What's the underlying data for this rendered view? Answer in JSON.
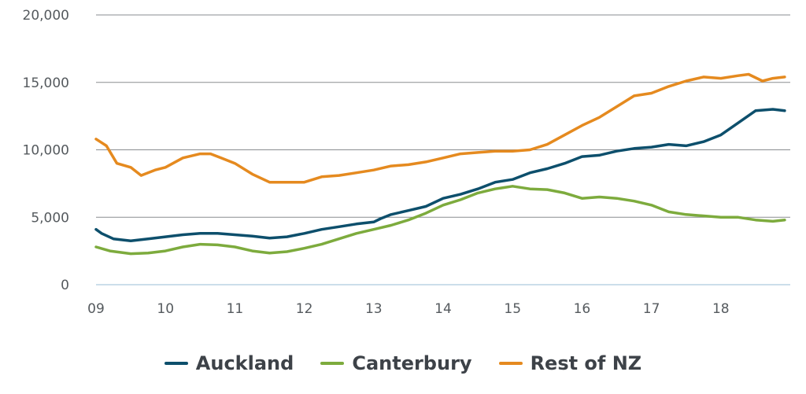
{
  "chart_data": {
    "type": "line",
    "title": "",
    "xlabel": "",
    "ylabel": "",
    "xlim": [
      2009,
      2019
    ],
    "ylim": [
      0,
      20000
    ],
    "y_ticks": [
      0,
      5000,
      10000,
      15000,
      20000
    ],
    "y_tick_labels": [
      "0",
      "5,000",
      "10,000",
      "15,000",
      "20,000"
    ],
    "x_ticks": [
      2009,
      2010,
      2011,
      2012,
      2013,
      2014,
      2015,
      2016,
      2017,
      2018
    ],
    "x_tick_labels": [
      "09",
      "10",
      "11",
      "12",
      "13",
      "14",
      "15",
      "16",
      "17",
      "18"
    ],
    "grid": true,
    "legend_position": "bottom",
    "series": [
      {
        "name": "Auckland",
        "color": "#0d4f6c",
        "points": [
          [
            2009.0,
            4100
          ],
          [
            2009.08,
            3800
          ],
          [
            2009.25,
            3400
          ],
          [
            2009.5,
            3250
          ],
          [
            2009.75,
            3400
          ],
          [
            2010.0,
            3550
          ],
          [
            2010.25,
            3700
          ],
          [
            2010.5,
            3800
          ],
          [
            2010.75,
            3800
          ],
          [
            2011.0,
            3700
          ],
          [
            2011.25,
            3600
          ],
          [
            2011.5,
            3450
          ],
          [
            2011.75,
            3550
          ],
          [
            2012.0,
            3800
          ],
          [
            2012.25,
            4100
          ],
          [
            2012.5,
            4300
          ],
          [
            2012.75,
            4500
          ],
          [
            2013.0,
            4650
          ],
          [
            2013.1,
            4900
          ],
          [
            2013.25,
            5200
          ],
          [
            2013.5,
            5500
          ],
          [
            2013.75,
            5800
          ],
          [
            2014.0,
            6400
          ],
          [
            2014.25,
            6700
          ],
          [
            2014.5,
            7100
          ],
          [
            2014.75,
            7600
          ],
          [
            2015.0,
            7800
          ],
          [
            2015.25,
            8300
          ],
          [
            2015.5,
            8600
          ],
          [
            2015.75,
            9000
          ],
          [
            2016.0,
            9500
          ],
          [
            2016.25,
            9600
          ],
          [
            2016.5,
            9900
          ],
          [
            2016.75,
            10100
          ],
          [
            2017.0,
            10200
          ],
          [
            2017.25,
            10400
          ],
          [
            2017.5,
            10300
          ],
          [
            2017.75,
            10600
          ],
          [
            2018.0,
            11100
          ],
          [
            2018.25,
            12000
          ],
          [
            2018.5,
            12900
          ],
          [
            2018.75,
            13000
          ],
          [
            2018.92,
            12900
          ]
        ]
      },
      {
        "name": "Canterbury",
        "color": "#7dab3d",
        "points": [
          [
            2009.0,
            2800
          ],
          [
            2009.2,
            2500
          ],
          [
            2009.5,
            2300
          ],
          [
            2009.75,
            2350
          ],
          [
            2010.0,
            2500
          ],
          [
            2010.25,
            2800
          ],
          [
            2010.5,
            3000
          ],
          [
            2010.75,
            2950
          ],
          [
            2011.0,
            2800
          ],
          [
            2011.25,
            2500
          ],
          [
            2011.5,
            2350
          ],
          [
            2011.75,
            2450
          ],
          [
            2012.0,
            2700
          ],
          [
            2012.25,
            3000
          ],
          [
            2012.5,
            3400
          ],
          [
            2012.75,
            3800
          ],
          [
            2013.0,
            4100
          ],
          [
            2013.25,
            4400
          ],
          [
            2013.5,
            4800
          ],
          [
            2013.75,
            5300
          ],
          [
            2014.0,
            5900
          ],
          [
            2014.25,
            6300
          ],
          [
            2014.5,
            6800
          ],
          [
            2014.75,
            7100
          ],
          [
            2015.0,
            7300
          ],
          [
            2015.25,
            7100
          ],
          [
            2015.5,
            7050
          ],
          [
            2015.75,
            6800
          ],
          [
            2016.0,
            6400
          ],
          [
            2016.25,
            6500
          ],
          [
            2016.5,
            6400
          ],
          [
            2016.75,
            6200
          ],
          [
            2017.0,
            5900
          ],
          [
            2017.25,
            5400
          ],
          [
            2017.5,
            5200
          ],
          [
            2017.75,
            5100
          ],
          [
            2018.0,
            5000
          ],
          [
            2018.25,
            5000
          ],
          [
            2018.5,
            4800
          ],
          [
            2018.75,
            4700
          ],
          [
            2018.92,
            4800
          ]
        ]
      },
      {
        "name": "Rest of NZ",
        "color": "#e58a1f",
        "points": [
          [
            2009.0,
            10800
          ],
          [
            2009.15,
            10300
          ],
          [
            2009.3,
            9000
          ],
          [
            2009.5,
            8700
          ],
          [
            2009.65,
            8100
          ],
          [
            2009.85,
            8500
          ],
          [
            2010.0,
            8700
          ],
          [
            2010.25,
            9400
          ],
          [
            2010.5,
            9700
          ],
          [
            2010.65,
            9700
          ],
          [
            2010.8,
            9400
          ],
          [
            2011.0,
            9000
          ],
          [
            2011.25,
            8200
          ],
          [
            2011.5,
            7600
          ],
          [
            2011.75,
            7600
          ],
          [
            2012.0,
            7600
          ],
          [
            2012.25,
            8000
          ],
          [
            2012.5,
            8100
          ],
          [
            2012.75,
            8300
          ],
          [
            2013.0,
            8500
          ],
          [
            2013.25,
            8800
          ],
          [
            2013.5,
            8900
          ],
          [
            2013.75,
            9100
          ],
          [
            2014.0,
            9400
          ],
          [
            2014.25,
            9700
          ],
          [
            2014.5,
            9800
          ],
          [
            2014.75,
            9900
          ],
          [
            2015.0,
            9900
          ],
          [
            2015.25,
            10000
          ],
          [
            2015.5,
            10400
          ],
          [
            2015.75,
            11100
          ],
          [
            2016.0,
            11800
          ],
          [
            2016.25,
            12400
          ],
          [
            2016.5,
            13200
          ],
          [
            2016.75,
            14000
          ],
          [
            2017.0,
            14200
          ],
          [
            2017.25,
            14700
          ],
          [
            2017.5,
            15100
          ],
          [
            2017.75,
            15400
          ],
          [
            2018.0,
            15300
          ],
          [
            2018.25,
            15500
          ],
          [
            2018.4,
            15600
          ],
          [
            2018.6,
            15100
          ],
          [
            2018.75,
            15300
          ],
          [
            2018.92,
            15400
          ]
        ]
      }
    ]
  }
}
